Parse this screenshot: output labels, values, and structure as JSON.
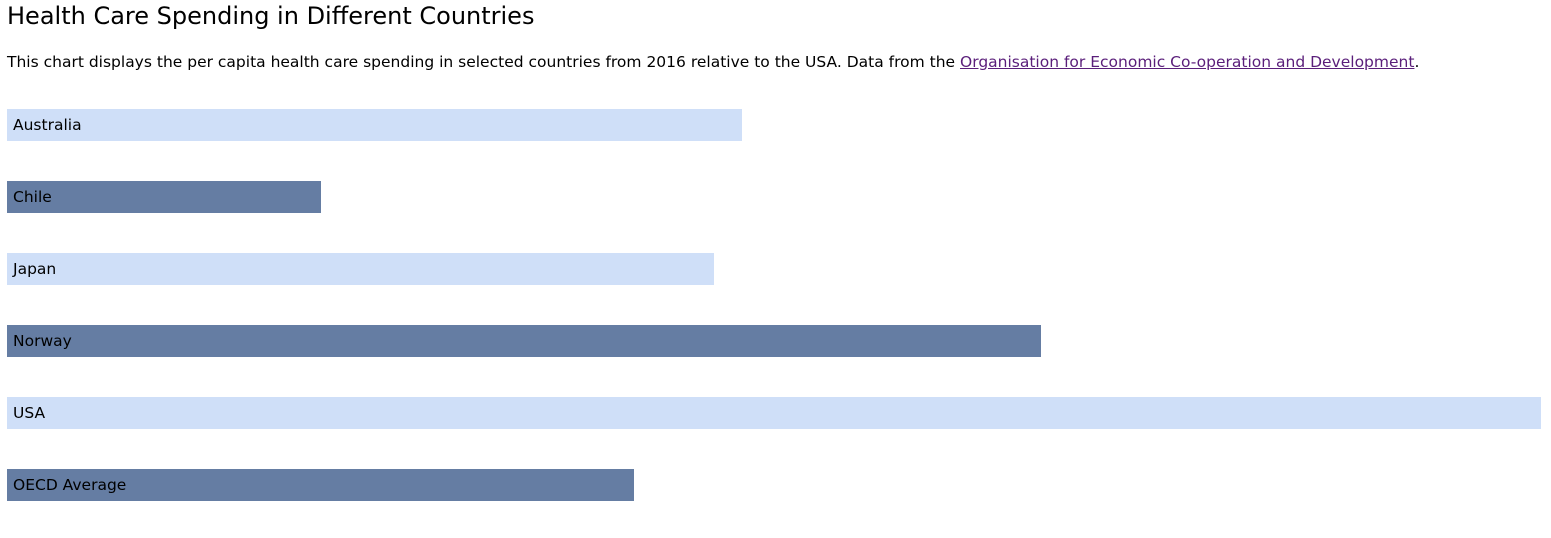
{
  "header": {
    "title": "Health Care Spending in Different Countries"
  },
  "description": {
    "text": "This chart displays the per capita health care spending in selected countries from 2016 relative to the USA. Data from the ",
    "link_text": "Organisation for Economic Co-operation and Development",
    "suffix": "."
  },
  "colors": {
    "light_bar": "#cfdff8",
    "dark_bar": "#657da3",
    "link": "#5a1e7a"
  },
  "chart_data": {
    "type": "bar",
    "orientation": "horizontal",
    "categories": [
      "Australia",
      "Chile",
      "Japan",
      "Norway",
      "USA",
      "OECD Average"
    ],
    "values": [
      47.9,
      20.5,
      46.1,
      67.4,
      100,
      40.9
    ],
    "xlim": [
      0,
      100
    ],
    "grid": false
  }
}
